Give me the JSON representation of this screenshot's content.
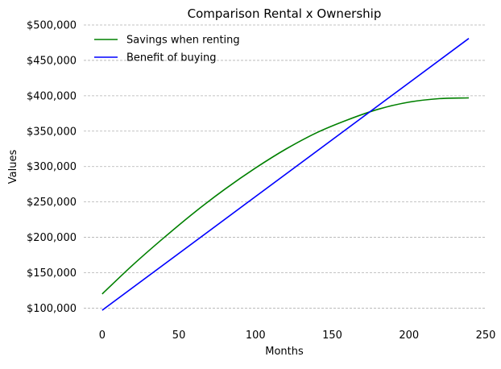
{
  "chart_data": {
    "type": "line",
    "title": "Comparison Rental x Ownership",
    "xlabel": "Months",
    "ylabel": "Values",
    "xlim": [
      -12,
      250
    ],
    "ylim": [
      80000,
      500000
    ],
    "grid": {
      "y": true,
      "x": false,
      "style": "dashed"
    },
    "legend_position": "top-left",
    "x_ticks": [
      0,
      50,
      100,
      150,
      200,
      250
    ],
    "x_tick_labels": [
      "0",
      "50",
      "100",
      "150",
      "200",
      "250"
    ],
    "y_ticks": [
      100000,
      150000,
      200000,
      250000,
      300000,
      350000,
      400000,
      450000,
      500000
    ],
    "y_tick_labels": [
      "$100,000",
      "$150,000",
      "$200,000",
      "$250,000",
      "$300,000",
      "$350,000",
      "$400,000",
      "$450,000",
      "$500,000"
    ],
    "series": [
      {
        "name": "Savings when renting",
        "color": "#008000",
        "x": [
          0,
          20,
          40,
          60,
          80,
          100,
          120,
          140,
          160,
          180,
          200,
          220,
          239
        ],
        "y": [
          120000,
          161000,
          199000,
          235000,
          268000,
          298000,
          325000,
          348000,
          366000,
          381000,
          391000,
          396000,
          397000
        ]
      },
      {
        "name": "Benefit of buying",
        "color": "#0000ff",
        "x": [
          0,
          239
        ],
        "y": [
          97000,
          481000
        ]
      }
    ]
  }
}
